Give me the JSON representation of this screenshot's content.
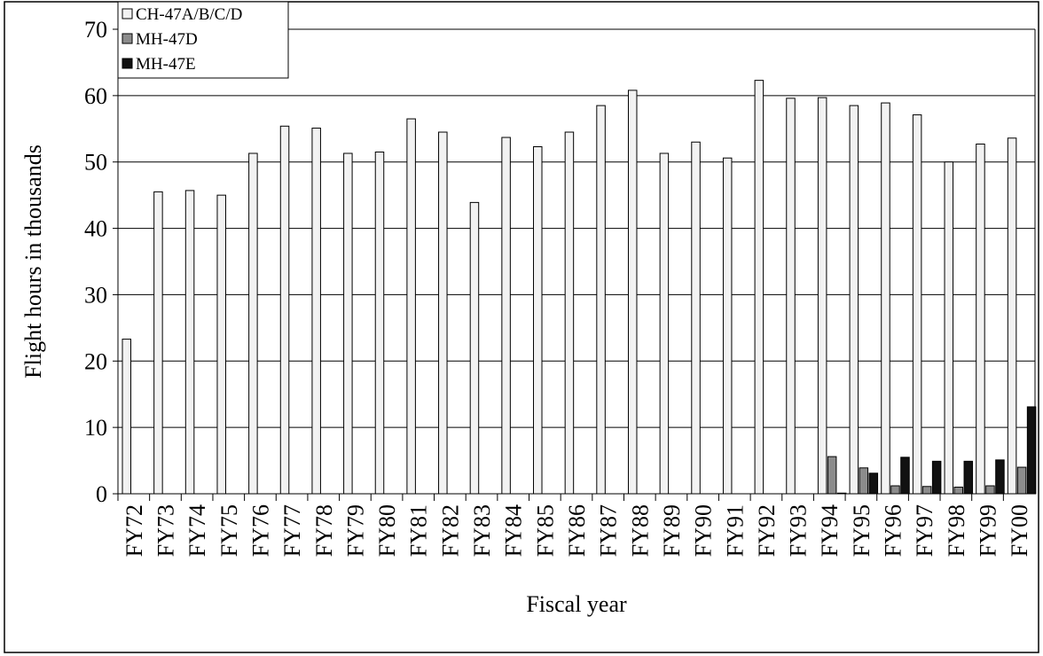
{
  "chart_data": {
    "type": "bar",
    "xlabel": "Fiscal year",
    "ylabel": "Flight hours in thousands",
    "categories": [
      "FY72",
      "FY73",
      "FY74",
      "FY75",
      "FY76",
      "FY77",
      "FY78",
      "FY79",
      "FY80",
      "FY81",
      "FY82",
      "FY83",
      "FY84",
      "FY85",
      "FY86",
      "FY87",
      "FY88",
      "FY89",
      "FY90",
      "FY91",
      "FY92",
      "FY93",
      "FY94",
      "FY95",
      "FY96",
      "FY97",
      "FY98",
      "FY99",
      "FY00"
    ],
    "series": [
      {
        "name": "CH-47A/B/C/D",
        "color": "#f2f2f2",
        "values": [
          23.3,
          45.5,
          45.7,
          45,
          51.3,
          55.4,
          55.1,
          51.3,
          51.5,
          56.5,
          54.5,
          43.9,
          53.7,
          52.3,
          54.5,
          58.5,
          60.8,
          51.3,
          53,
          50.6,
          62.3,
          59.6,
          59.7,
          58.5,
          58.9,
          57.1,
          50,
          52.7,
          53.6
        ]
      },
      {
        "name": "MH-47D",
        "color": "#8c8c8c",
        "values": [
          0,
          0,
          0,
          0,
          0,
          0,
          0,
          0,
          0,
          0,
          0,
          0,
          0,
          0,
          0,
          0,
          0,
          0,
          0,
          0,
          0,
          0,
          5.6,
          3.9,
          1.2,
          1.1,
          1.0,
          1.2,
          4.0
        ]
      },
      {
        "name": "MH-47E",
        "color": "#111111",
        "values": [
          0,
          0,
          0,
          0,
          0,
          0,
          0,
          0,
          0,
          0,
          0,
          0,
          0,
          0,
          0,
          0,
          0,
          0,
          0,
          0,
          0,
          0,
          0.1,
          3.1,
          5.5,
          4.9,
          4.9,
          5.1,
          13.1
        ]
      }
    ],
    "ylim": [
      0,
      70
    ],
    "yticks": [
      0,
      10,
      20,
      30,
      40,
      50,
      60,
      70
    ],
    "grid": true,
    "legend": "top-left"
  }
}
